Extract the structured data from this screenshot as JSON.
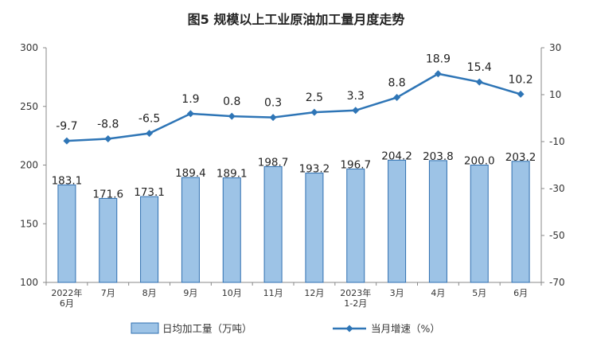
{
  "chart_data": {
    "type": "bar+line",
    "title": "图5  规模以上工业原油加工量月度走势",
    "categories": [
      [
        "2022年",
        "6月"
      ],
      [
        "7月"
      ],
      [
        "8月"
      ],
      [
        "9月"
      ],
      [
        "10月"
      ],
      [
        "11月"
      ],
      [
        "12月"
      ],
      [
        "2023年",
        "1-2月"
      ],
      [
        "3月"
      ],
      [
        "4月"
      ],
      [
        "5月"
      ],
      [
        "6月"
      ]
    ],
    "series": [
      {
        "name": "日均加工量（万吨）",
        "type": "bar",
        "axis": "left",
        "values": [
          183.1,
          171.6,
          173.1,
          189.4,
          189.1,
          198.7,
          193.2,
          196.7,
          204.2,
          203.8,
          200.0,
          203.2
        ],
        "labels": [
          "183.1",
          "171.6",
          "173.1",
          "189.4",
          "189.1",
          "198.7",
          "193.2",
          "196.7",
          "204.2",
          "203.8",
          "200.0",
          "203.2"
        ],
        "color": "#9DC3E6",
        "stroke": "#2F6FB0"
      },
      {
        "name": "当月增速（%）",
        "type": "line",
        "axis": "right",
        "values": [
          -9.7,
          -8.8,
          -6.5,
          1.9,
          0.8,
          0.3,
          2.5,
          3.3,
          8.8,
          18.9,
          15.4,
          10.2
        ],
        "labels": [
          "-9.7",
          "-8.8",
          "-6.5",
          "1.9",
          "0.8",
          "0.3",
          "2.5",
          "3.3",
          "8.8",
          "18.9",
          "15.4",
          "10.2"
        ],
        "color": "#2E75B6"
      }
    ],
    "y_left": {
      "min": 100,
      "max": 300,
      "ticks": [
        100,
        150,
        200,
        250,
        300
      ]
    },
    "y_right": {
      "min": -70,
      "max": 30,
      "ticks": [
        -70,
        -50,
        -30,
        -10,
        10,
        30
      ]
    },
    "grid": false,
    "legend": "bottom"
  }
}
